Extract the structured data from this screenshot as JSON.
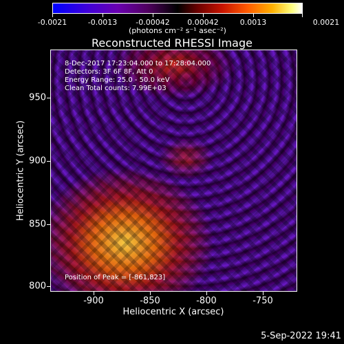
{
  "colorbar": {
    "tick_labels": [
      "-0.0021",
      "-0.0013",
      "-0.00042",
      "0.00042",
      "0.0013",
      "0.0021"
    ],
    "units_label": "(photons cm⁻² s⁻¹ asec⁻²)"
  },
  "title": "Reconstructed RHESSI Image",
  "info": {
    "time_range": "8-Dec-2017 17:23:04.000 to 17:28:04.000",
    "detectors": "Detectors: 3F 6F 8F, Att 0",
    "energy": "Energy Range: 25.0 - 50.0 keV",
    "clean": "Clean    Total counts: 7.99E+03"
  },
  "peak": "Position of Peak = [-861,823]",
  "axes": {
    "xlabel": "Heliocentric X (arcsec)",
    "ylabel": "Heliocentric Y (arcsec)",
    "x_ticks": [
      "-900",
      "-850",
      "-800",
      "-750"
    ],
    "y_ticks": [
      "950",
      "900",
      "850",
      "800"
    ]
  },
  "timestamp": "5-Sep-2022 19:41"
}
